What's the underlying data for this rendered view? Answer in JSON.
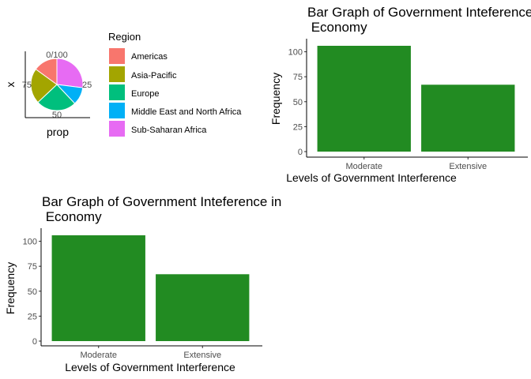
{
  "chart_data": [
    {
      "type": "pie",
      "xlabel": "prop",
      "ylabel": "x",
      "theta_ticks": [
        "0/100",
        "25",
        "50",
        "75"
      ],
      "legend": {
        "title": "Region",
        "placement": "right",
        "entries": [
          {
            "label": "Americas",
            "color": "#F8766D"
          },
          {
            "label": "Asia-Pacific",
            "color": "#A3A500"
          },
          {
            "label": "Europe",
            "color": "#00BF7D"
          },
          {
            "label": "Middle East and North Africa",
            "color": "#00B0F6"
          },
          {
            "label": "Sub-Saharan Africa",
            "color": "#E76BF3"
          }
        ]
      },
      "slices": [
        {
          "label": "Sub-Saharan Africa",
          "value": 27,
          "color": "#E76BF3"
        },
        {
          "label": "Middle East and North Africa",
          "value": 11,
          "color": "#00B0F6"
        },
        {
          "label": "Europe",
          "value": 25,
          "color": "#00BF7D"
        },
        {
          "label": "Asia-Pacific",
          "value": 22,
          "color": "#A3A500"
        },
        {
          "label": "Americas",
          "value": 15,
          "color": "#F8766D"
        }
      ]
    },
    {
      "type": "bar",
      "title_line1": "Bar Graph of Government Inteference in",
      "title_line2": " Economy",
      "xlabel": "Levels of Government Interference",
      "ylabel": "Frequency",
      "categories": [
        "Moderate",
        "Extensive"
      ],
      "values": [
        106,
        67
      ],
      "yticks": [
        0,
        25,
        50,
        75,
        100
      ],
      "ylim": [
        0,
        106
      ],
      "bar_color": "#228B22"
    },
    {
      "type": "bar",
      "title_line1": "Bar Graph of Government Inteference in",
      "title_line2": " Economy",
      "xlabel": "Levels of Government Interference",
      "ylabel": "Frequency",
      "categories": [
        "Moderate",
        "Extensive"
      ],
      "values": [
        106,
        67
      ],
      "yticks": [
        0,
        25,
        50,
        75,
        100
      ],
      "ylim": [
        0,
        106
      ],
      "bar_color": "#228B22"
    }
  ]
}
